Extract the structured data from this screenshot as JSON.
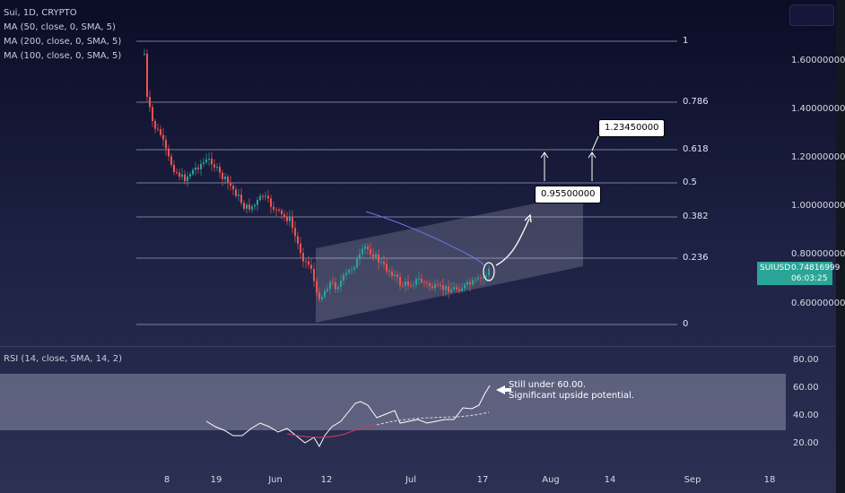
{
  "legend": {
    "symbol": "Sui, 1D, CRYPTO",
    "ma50": "MA (50, close, 0, SMA, 5)",
    "ma200": "MA (200, close, 0, SMA, 5)",
    "ma100": "MA (100, close, 0, SMA, 5)"
  },
  "rsi": {
    "legend": "RSI (14, close, SMA, 14, 2)",
    "axis": [
      "80.00",
      "60.00",
      "40.00",
      "20.00"
    ],
    "note_line1": "Still under 60.00.",
    "note_line2": "Significant upside potential."
  },
  "price_axis": [
    "1.60000000",
    "1.40000000",
    "1.20000000",
    "1.00000000",
    "0.80000000",
    "0.60000000"
  ],
  "fib_levels": [
    "1",
    "0.786",
    "0.618",
    "0.5",
    "0.382",
    "0.236",
    "0"
  ],
  "dates": [
    "8",
    "19",
    "Jun",
    "12",
    "Jul",
    "17",
    "Aug",
    "14",
    "Sep",
    "18"
  ],
  "symbol_badge": {
    "name": "SUIUSD",
    "price": "0.74816999",
    "countdown": "06:03:25",
    "color": "#2aa597"
  },
  "callouts": {
    "target1": "0.95500000",
    "target2": "1.23450000"
  },
  "colors": {
    "bull": "#26a69a",
    "bear": "#ef5350",
    "rsi_band": "#8a8ea8"
  }
}
